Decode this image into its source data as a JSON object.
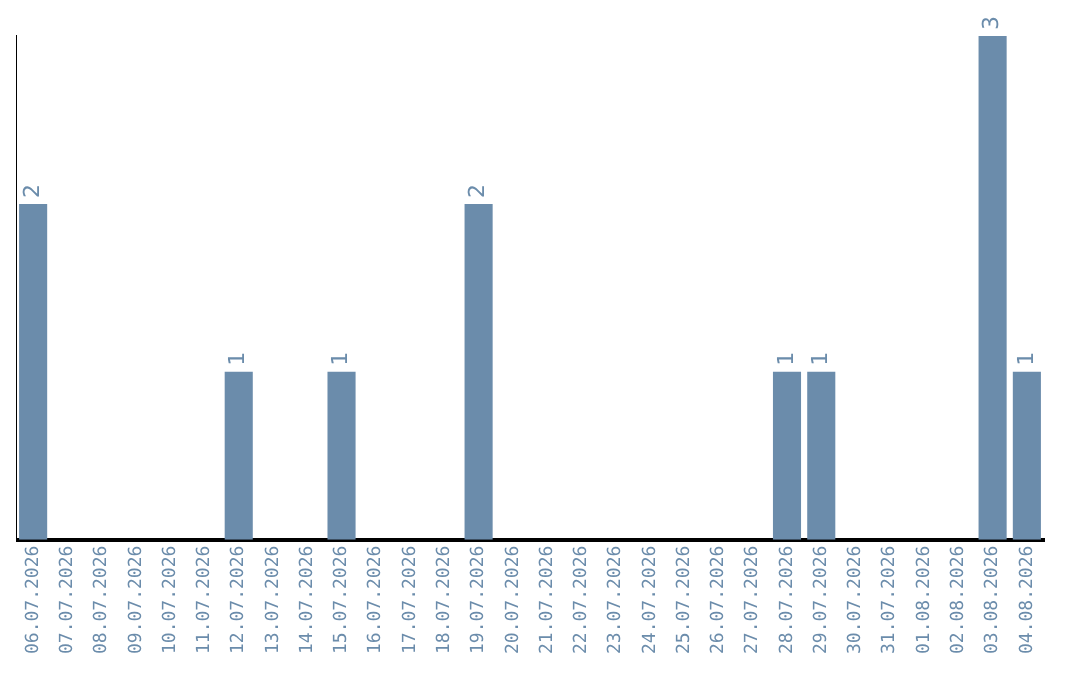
{
  "chart_data": {
    "type": "bar",
    "categories": [
      "06.07.2026",
      "07.07.2026",
      "08.07.2026",
      "09.07.2026",
      "10.07.2026",
      "11.07.2026",
      "12.07.2026",
      "13.07.2026",
      "14.07.2026",
      "15.07.2026",
      "16.07.2026",
      "17.07.2026",
      "18.07.2026",
      "19.07.2026",
      "20.07.2026",
      "21.07.2026",
      "22.07.2026",
      "23.07.2026",
      "24.07.2026",
      "25.07.2026",
      "26.07.2026",
      "27.07.2026",
      "28.07.2026",
      "29.07.2026",
      "30.07.2026",
      "31.07.2026",
      "01.08.2026",
      "02.08.2026",
      "03.08.2026",
      "04.08.2026"
    ],
    "values": [
      2,
      0,
      0,
      0,
      0,
      0,
      1,
      0,
      0,
      1,
      0,
      0,
      0,
      2,
      0,
      0,
      0,
      0,
      0,
      0,
      0,
      0,
      1,
      1,
      0,
      0,
      0,
      0,
      3,
      1
    ],
    "value_labels": [
      "2",
      null,
      null,
      null,
      null,
      null,
      "1",
      null,
      null,
      "1",
      null,
      null,
      null,
      "2",
      null,
      null,
      null,
      null,
      null,
      null,
      null,
      null,
      "1",
      "1",
      null,
      null,
      null,
      null,
      "3",
      "1"
    ],
    "color": "#6b8cab",
    "tick_labels": "x",
    "grid": false,
    "legend": false
  }
}
